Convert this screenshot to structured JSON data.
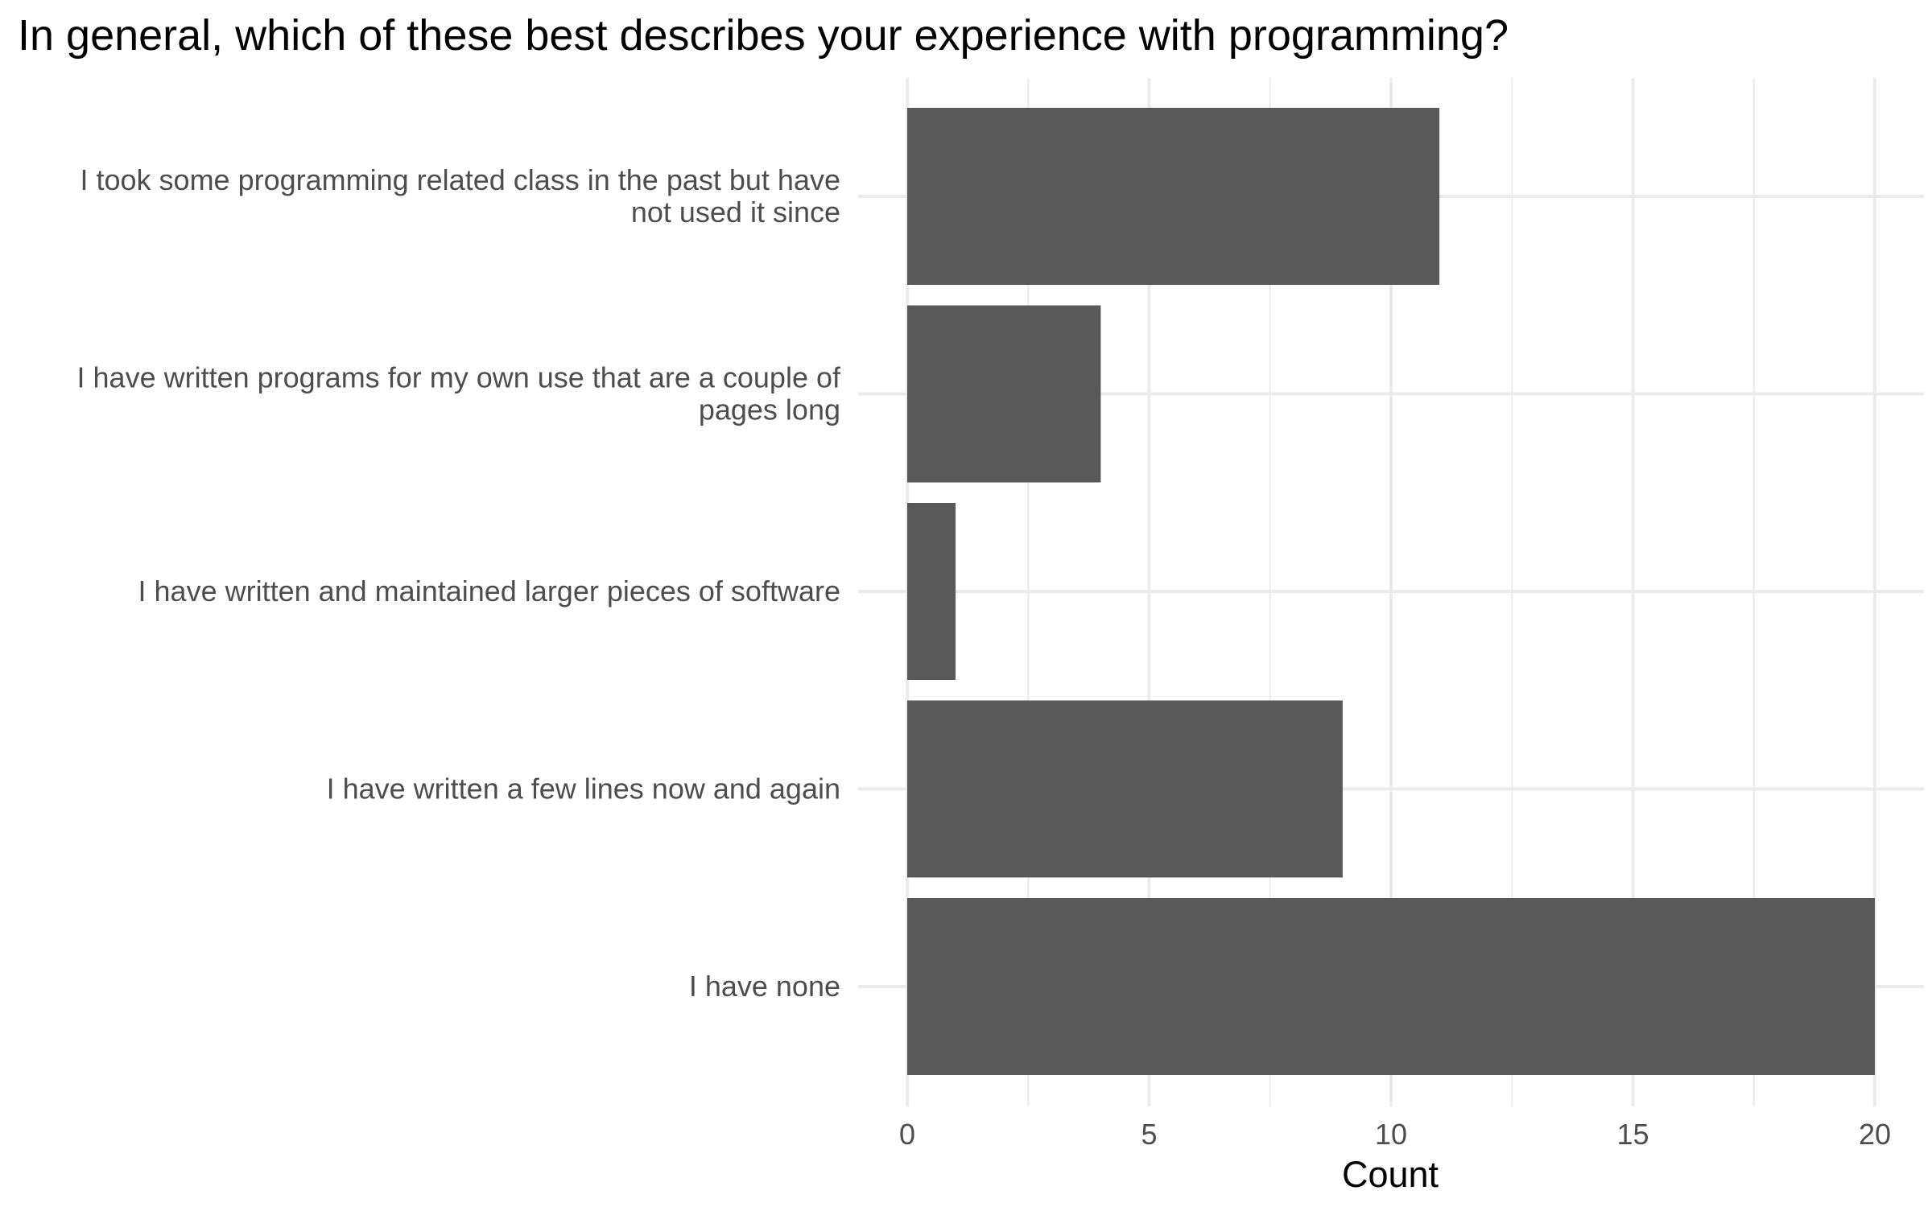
{
  "chart_data": {
    "type": "bar",
    "orientation": "horizontal",
    "title": "In general, which of these best describes your experience with programming?",
    "xlabel": "Count",
    "ylabel": "",
    "categories": [
      "I took some programming related class in the past but have not used it since",
      "I have written programs for my own use that are a couple of pages long",
      "I have written and maintained larger pieces of software",
      "I have written a few lines now and again",
      "I have none"
    ],
    "category_label_lines": [
      [
        "I took some programming related class in the past but have",
        "not used it since"
      ],
      [
        "I have written programs for my own use that are a couple of",
        "pages long"
      ],
      [
        "I have written and maintained larger pieces of software"
      ],
      [
        "I have written a few lines now and again"
      ],
      [
        "I have none"
      ]
    ],
    "values": [
      11,
      4,
      1,
      9,
      20
    ],
    "xlim": [
      0,
      20
    ],
    "x_ticks": [
      "0",
      "5",
      "10",
      "15",
      "20"
    ],
    "x_tick_values": [
      0,
      5,
      10,
      15,
      20
    ],
    "grid": true,
    "legend": "none",
    "colors": {
      "bar": "#595959",
      "grid": "#ebebeb",
      "axis_text": "#4d4d4d",
      "title": "#000000"
    }
  }
}
